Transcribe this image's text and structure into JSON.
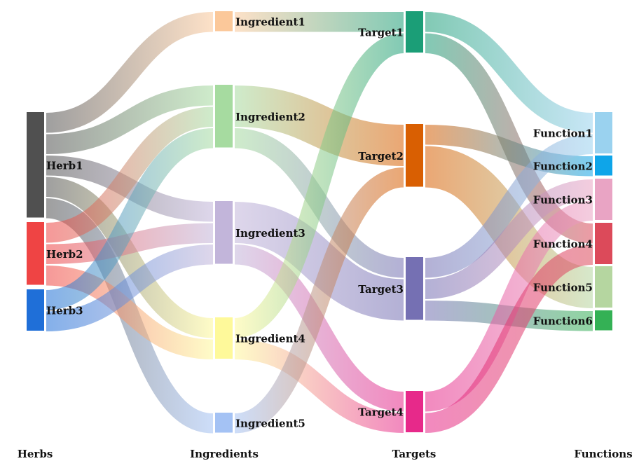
{
  "columns": [
    {
      "id": "herbs",
      "label": "Herbs"
    },
    {
      "id": "ingredients",
      "label": "Ingredients"
    },
    {
      "id": "targets",
      "label": "Targets"
    },
    {
      "id": "functions",
      "label": "Functions"
    }
  ],
  "nodes": [
    {
      "id": "herb1",
      "label": "Herb1",
      "column": 0,
      "color": "#505050"
    },
    {
      "id": "herb2",
      "label": "Herb2",
      "column": 0,
      "color": "#ef4444"
    },
    {
      "id": "herb3",
      "label": "Herb3",
      "column": 0,
      "color": "#1f6fd8"
    },
    {
      "id": "ing1",
      "label": "Ingredient1",
      "column": 1,
      "color": "#fbc89a"
    },
    {
      "id": "ing2",
      "label": "Ingredient2",
      "column": 1,
      "color": "#a6dba0"
    },
    {
      "id": "ing3",
      "label": "Ingredient3",
      "column": 1,
      "color": "#c2b5da"
    },
    {
      "id": "ing4",
      "label": "Ingredient4",
      "column": 1,
      "color": "#fef99a"
    },
    {
      "id": "ing5",
      "label": "Ingredient5",
      "column": 1,
      "color": "#a4c2f4"
    },
    {
      "id": "tgt1",
      "label": "Target1",
      "column": 2,
      "color": "#1b9e77"
    },
    {
      "id": "tgt2",
      "label": "Target2",
      "column": 2,
      "color": "#d95f02"
    },
    {
      "id": "tgt3",
      "label": "Target3",
      "column": 2,
      "color": "#7570b3"
    },
    {
      "id": "tgt4",
      "label": "Target4",
      "column": 2,
      "color": "#e7298a"
    },
    {
      "id": "fn1",
      "label": "Function1",
      "column": 3,
      "color": "#9ad2ef"
    },
    {
      "id": "fn2",
      "label": "Function2",
      "column": 3,
      "color": "#0ea5e9"
    },
    {
      "id": "fn3",
      "label": "Function3",
      "column": 3,
      "color": "#e9a4c4"
    },
    {
      "id": "fn4",
      "label": "Function4",
      "column": 3,
      "color": "#dc4a5a"
    },
    {
      "id": "fn5",
      "label": "Function5",
      "column": 3,
      "color": "#b5d6a0"
    },
    {
      "id": "fn6",
      "label": "Function6",
      "column": 3,
      "color": "#34b155"
    }
  ],
  "links": [
    {
      "source": "herb1",
      "target": "ing1",
      "value": 1
    },
    {
      "source": "herb1",
      "target": "ing2",
      "value": 1
    },
    {
      "source": "herb1",
      "target": "ing3",
      "value": 1
    },
    {
      "source": "herb1",
      "target": "ing4",
      "value": 1
    },
    {
      "source": "herb1",
      "target": "ing5",
      "value": 1
    },
    {
      "source": "herb2",
      "target": "ing2",
      "value": 1
    },
    {
      "source": "herb2",
      "target": "ing3",
      "value": 1
    },
    {
      "source": "herb2",
      "target": "ing4",
      "value": 1
    },
    {
      "source": "herb3",
      "target": "ing2",
      "value": 1
    },
    {
      "source": "herb3",
      "target": "ing3",
      "value": 1
    },
    {
      "source": "ing1",
      "target": "tgt1",
      "value": 1
    },
    {
      "source": "ing2",
      "target": "tgt2",
      "value": 2
    },
    {
      "source": "ing2",
      "target": "tgt3",
      "value": 1
    },
    {
      "source": "ing3",
      "target": "tgt3",
      "value": 2
    },
    {
      "source": "ing3",
      "target": "tgt4",
      "value": 1
    },
    {
      "source": "ing4",
      "target": "tgt1",
      "value": 1
    },
    {
      "source": "ing4",
      "target": "tgt4",
      "value": 1
    },
    {
      "source": "ing5",
      "target": "tgt2",
      "value": 1
    },
    {
      "source": "tgt1",
      "target": "fn1",
      "value": 1
    },
    {
      "source": "tgt1",
      "target": "fn4",
      "value": 1
    },
    {
      "source": "tgt2",
      "target": "fn2",
      "value": 1
    },
    {
      "source": "tgt2",
      "target": "fn5",
      "value": 2
    },
    {
      "source": "tgt3",
      "target": "fn1",
      "value": 1
    },
    {
      "source": "tgt3",
      "target": "fn3",
      "value": 1
    },
    {
      "source": "tgt3",
      "target": "fn6",
      "value": 1
    },
    {
      "source": "tgt4",
      "target": "fn3",
      "value": 1
    },
    {
      "source": "tgt4",
      "target": "fn4",
      "value": 1
    }
  ]
}
